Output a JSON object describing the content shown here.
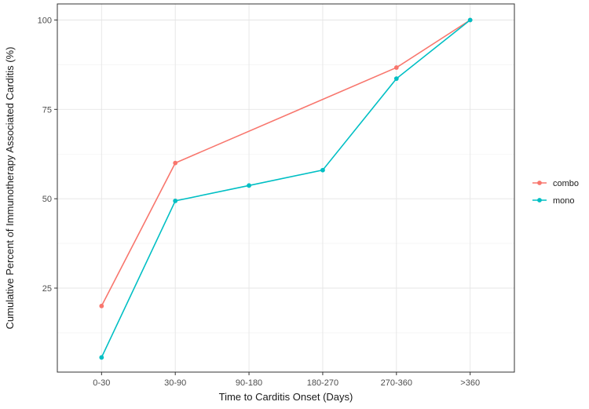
{
  "chart_data": {
    "type": "line",
    "xlabel": "Time to Carditis Onset (Days)",
    "ylabel": "Cumulative Percent of Immunotherapy Associated Carditis (%)",
    "categories": [
      "0-30",
      "30-90",
      "90-180",
      "180-270",
      "270-360",
      ">360"
    ],
    "ylim": [
      1.5,
      104.5
    ],
    "yticks": [
      25,
      50,
      75,
      100
    ],
    "grid": true,
    "legend_position": "right",
    "series": [
      {
        "name": "combo",
        "color": "#F8766D",
        "values": [
          20,
          60,
          null,
          null,
          86.7,
          100
        ]
      },
      {
        "name": "mono",
        "color": "#00BFC4",
        "values": [
          5.6,
          49.4,
          53.7,
          58.0,
          83.6,
          100
        ]
      }
    ]
  }
}
